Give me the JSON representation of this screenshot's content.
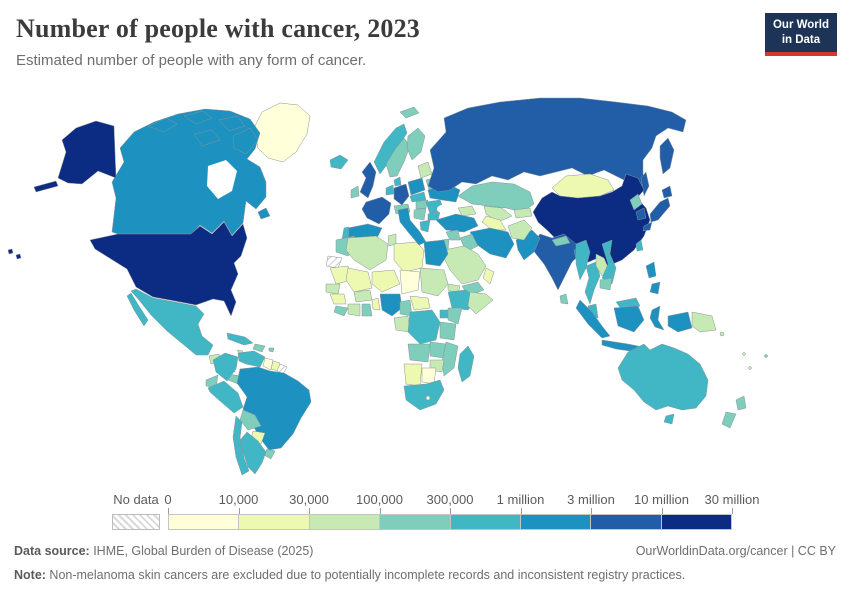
{
  "header": {
    "title": "Number of people with cancer, 2023",
    "subtitle": "Estimated number of people with any form of cancer."
  },
  "logo": {
    "line1": "Our World",
    "line2": "in Data",
    "bg": "#1d3456",
    "accent": "#d4382d"
  },
  "legend": {
    "no_data_label": "No data",
    "tick_labels": [
      "0",
      "10,000",
      "30,000",
      "100,000",
      "300,000",
      "1 million",
      "3 million",
      "10 million",
      "30 million"
    ],
    "bin_colors": [
      "#ffffd9",
      "#edf8b1",
      "#c7e9b4",
      "#7fcdbb",
      "#41b6c4",
      "#1d91c0",
      "#225ea8",
      "#0c2c84"
    ]
  },
  "footer": {
    "source_label": "Data source:",
    "source_text": " IHME, Global Burden of Disease (2025)",
    "credit": "OurWorldinData.org/cancer | CC BY",
    "note_label": "Note:",
    "note_text": " Non-melanoma skin cancers are excluded due to potentially incomplete records and inconsistent registry practices."
  },
  "chart_data": {
    "type": "heatmap",
    "subtype": "choropleth-world-map",
    "title": "Number of people with cancer, 2023",
    "legend_bins": [
      {
        "range": "0–10,000",
        "color": "#ffffd9"
      },
      {
        "range": "10,000–30,000",
        "color": "#edf8b1"
      },
      {
        "range": "30,000–100,000",
        "color": "#c7e9b4"
      },
      {
        "range": "100,000–300,000",
        "color": "#7fcdbb"
      },
      {
        "range": "300,000–1 million",
        "color": "#41b6c4"
      },
      {
        "range": "1–3 million",
        "color": "#1d91c0"
      },
      {
        "range": "3–10 million",
        "color": "#225ea8"
      },
      {
        "range": "10–30 million",
        "color": "#0c2c84"
      }
    ],
    "no_data_style": "hatch",
    "countries": {
      "united_states": "#0c2c84",
      "alaska": "#0c2c84",
      "hawaii": "#0c2c84",
      "china": "#0c2c84",
      "canada": "#1d91c0",
      "canada_arctic_islands": "#1d91c0",
      "newfoundland": "#1d91c0",
      "brazil": "#1d91c0",
      "russia": "#225ea8",
      "kamchatka": "#225ea8",
      "sakhalin": "#225ea8",
      "india": "#225ea8",
      "japan_hokkaido": "#225ea8",
      "japan_honshu": "#225ea8",
      "japan_kyushu": "#225ea8",
      "south_korea": "#225ea8",
      "north_korea": "#7fcdbb",
      "united_kingdom": "#225ea8",
      "france": "#225ea8",
      "germany": "#225ea8",
      "mexico": "#41b6c4",
      "baja_california": "#41b6c4",
      "australia": "#41b6c4",
      "tasmania": "#41b6c4",
      "spain": "#1d91c0",
      "italy": "#1d91c0",
      "sicily": "#1d91c0",
      "poland": "#1d91c0",
      "ukraine": "#1d91c0",
      "turkey": "#1d91c0",
      "iran": "#1d91c0",
      "egypt": "#1d91c0",
      "nigeria": "#1d91c0",
      "indonesia_sumatra": "#1d91c0",
      "indonesia_java": "#1d91c0",
      "indonesia_kalimantan": "#1d91c0",
      "indonesia_sulawesi": "#1d91c0",
      "indonesia_papua": "#1d91c0",
      "philippines_luzon": "#1d91c0",
      "philippines_mindanao": "#1d91c0",
      "pakistan": "#1d91c0",
      "bangladesh": "#1d91c0",
      "vietnam": "#41b6c4",
      "argentina": "#41b6c4",
      "chile": "#41b6c4",
      "colombia": "#41b6c4",
      "venezuela": "#41b6c4",
      "peru": "#41b6c4",
      "south_africa": "#41b6c4",
      "ethiopia": "#41b6c4",
      "dr_congo": "#41b6c4",
      "uganda": "#41b6c4",
      "madagascar": "#41b6c4",
      "myanmar": "#41b6c4",
      "thailand": "#41b6c4",
      "malaysia_peninsula": "#41b6c4",
      "malaysia_borneo": "#41b6c4",
      "taiwan": "#41b6c4",
      "norway": "#41b6c4",
      "portugal": "#41b6c4",
      "netherlands_belgium": "#41b6c4",
      "denmark": "#41b6c4",
      "cuba": "#41b6c4",
      "iceland": "#41b6c4",
      "czech_slovakia": "#41b6c4",
      "romania": "#41b6c4",
      "bulgaria": "#41b6c4",
      "greece": "#41b6c4",
      "sweden": "#7fcdbb",
      "finland": "#7fcdbb",
      "ireland": "#7fcdbb",
      "svalbard": "#7fcdbb",
      "kazakhstan": "#7fcdbb",
      "nepal": "#7fcdbb",
      "sri_lanka": "#7fcdbb",
      "bolivia": "#7fcdbb",
      "ecuador": "#7fcdbb",
      "uruguay": "#7fcdbb",
      "hispaniola": "#7fcdbb",
      "puerto_rico": "#7fcdbb",
      "costa_rica_panama": "#7fcdbb",
      "angola": "#7fcdbb",
      "zambia": "#7fcdbb",
      "mozambique_malawi": "#7fcdbb",
      "tanzania": "#7fcdbb",
      "kenya": "#7fcdbb",
      "cameroon": "#7fcdbb",
      "ghana": "#7fcdbb",
      "sierra_leone_liberia": "#7fcdbb",
      "morocco": "#7fcdbb",
      "iraq": "#7fcdbb",
      "syria": "#7fcdbb",
      "yemen": "#7fcdbb",
      "jordan_israel": "#7fcdbb",
      "belarus": "#7fcdbb",
      "hungary": "#7fcdbb",
      "balkans": "#7fcdbb",
      "switzerland_austria": "#7fcdbb",
      "cambodia": "#7fcdbb",
      "new_zealand_north": "#7fcdbb",
      "new_zealand_south": "#7fcdbb",
      "fiji": "#7fcdbb",
      "algeria": "#c7e9b4",
      "tunisia": "#c7e9b4",
      "sudan": "#c7e9b4",
      "eritrea": "#c7e9b4",
      "somalia": "#c7e9b4",
      "senegal": "#c7e9b4",
      "ivory_coast": "#c7e9b4",
      "burkina_faso": "#c7e9b4",
      "gabon_congo": "#c7e9b4",
      "zimbabwe": "#c7e9b4",
      "saudi_arabia": "#c7e9b4",
      "afghanistan": "#c7e9b4",
      "uzbekistan": "#c7e9b4",
      "kyrgyzstan_tajikistan": "#c7e9b4",
      "baltics": "#c7e9b4",
      "caucasus": "#c7e9b4",
      "guatemala": "#c7e9b4",
      "honduras_nicaragua": "#c7e9b4",
      "laos": "#c7e9b4",
      "papua_new_guinea": "#c7e9b4",
      "jamaica": "#c7e9b4",
      "solomon_islands": "#c7e9b4",
      "vanuatu": "#c7e9b4",
      "new_caledonia": "#c7e9b4",
      "libya": "#edf8b1",
      "mauritania": "#edf8b1",
      "mali": "#edf8b1",
      "niger": "#edf8b1",
      "central_african_republic": "#edf8b1",
      "benin_togo": "#edf8b1",
      "guinea": "#edf8b1",
      "turkmenistan": "#edf8b1",
      "oman": "#edf8b1",
      "suriname": "#edf8b1",
      "paraguay": "#edf8b1",
      "namibia": "#edf8b1",
      "mongolia": "#edf8b1",
      "greenland": "#ffffd9",
      "chad": "#ffffd9",
      "botswana": "#ffffd9",
      "lesotho": "#ffffd9",
      "guyana": "#ffffd9",
      "western_sahara": "hatch",
      "french_guiana": "hatch"
    }
  }
}
